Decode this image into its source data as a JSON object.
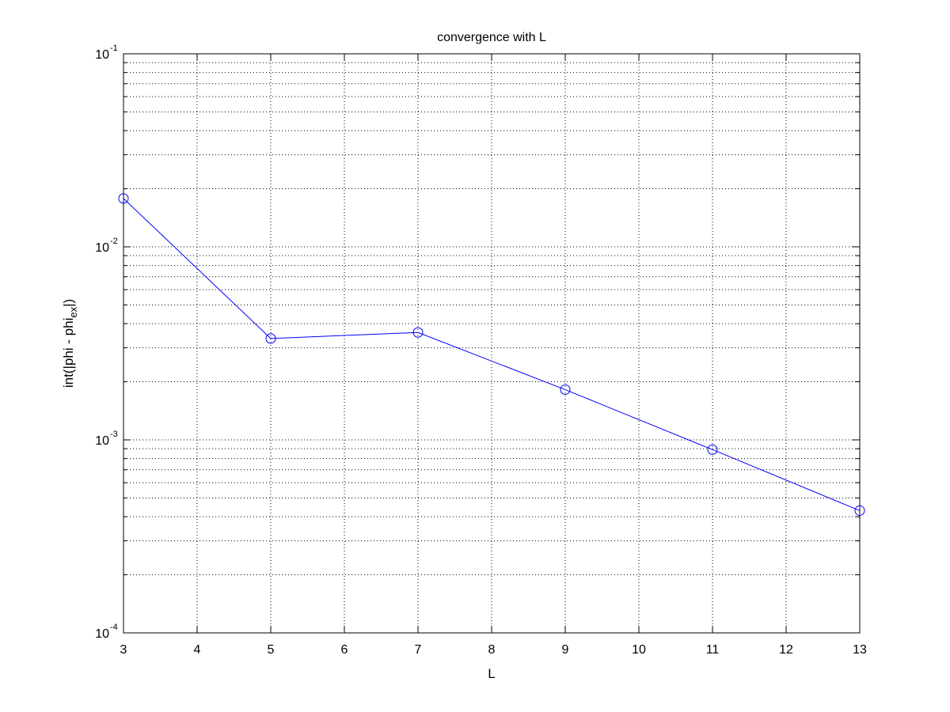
{
  "chart_data": {
    "type": "line",
    "title": "convergence with L",
    "xlabel": "L",
    "ylabel": {
      "main": "int(|phi - phi",
      "subscript": "ex",
      "suffix": "|)"
    },
    "x_scale": "linear",
    "y_scale": "log",
    "xlim": [
      3,
      13
    ],
    "ylim": [
      0.0001,
      0.1
    ],
    "x_ticks": [
      3,
      4,
      5,
      6,
      7,
      8,
      9,
      10,
      11,
      12,
      13
    ],
    "y_ticks": [
      {
        "base": "10",
        "exponent": "-4",
        "value": 0.0001
      },
      {
        "base": "10",
        "exponent": "-3",
        "value": 0.001
      },
      {
        "base": "10",
        "exponent": "-2",
        "value": 0.01
      },
      {
        "base": "10",
        "exponent": "-1",
        "value": 0.1
      }
    ],
    "grid": true,
    "grid_style": "dotted",
    "series": [
      {
        "color": "#0000ff",
        "marker": "circle",
        "x": [
          3,
          5,
          7,
          9,
          11,
          13
        ],
        "values": [
          0.0178,
          0.00335,
          0.0036,
          0.00182,
          0.00089,
          0.00043
        ]
      }
    ]
  }
}
